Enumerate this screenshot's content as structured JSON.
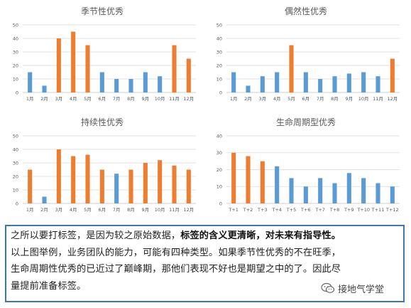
{
  "colors": {
    "orange": "#ED7D31",
    "blue": "#5B9BD5"
  },
  "chart_data": [
    {
      "type": "bar",
      "title": "季节性优秀",
      "categories": [
        "1月",
        "2月",
        "3月",
        "4月",
        "5月",
        "6月",
        "7月",
        "8月",
        "9月",
        "10月",
        "11月",
        "12月"
      ],
      "values": [
        15,
        5,
        40,
        45,
        35,
        15,
        10,
        10,
        15,
        12,
        35,
        25
      ],
      "bar_colors": [
        "blue",
        "blue",
        "orange",
        "orange",
        "orange",
        "blue",
        "blue",
        "blue",
        "blue",
        "blue",
        "orange",
        "orange"
      ],
      "ylim": [
        0,
        50
      ],
      "yticks": [
        0,
        10,
        20,
        30,
        40,
        50
      ],
      "grid": true
    },
    {
      "type": "bar",
      "title": "偶然性优秀",
      "categories": [
        "1月",
        "2月",
        "3月",
        "4月",
        "5月",
        "6月",
        "7月",
        "8月",
        "9月",
        "10月",
        "11月",
        "12月"
      ],
      "values": [
        15,
        5,
        12,
        15,
        35,
        15,
        10,
        12,
        14,
        15,
        12,
        25
      ],
      "bar_colors": [
        "blue",
        "blue",
        "blue",
        "blue",
        "orange",
        "blue",
        "blue",
        "blue",
        "blue",
        "blue",
        "blue",
        "orange"
      ],
      "ylim": [
        0,
        50
      ],
      "yticks": [
        0,
        10,
        20,
        30,
        40,
        50
      ],
      "grid": true
    },
    {
      "type": "bar",
      "title": "持续性优秀",
      "categories": [
        "1月",
        "2月",
        "3月",
        "4月",
        "5月",
        "6月",
        "7月",
        "8月",
        "9月",
        "10月",
        "11月",
        "12月"
      ],
      "values": [
        25,
        5,
        40,
        35,
        36,
        25,
        22,
        25,
        30,
        32,
        28,
        25
      ],
      "bar_colors": [
        "orange",
        "blue",
        "orange",
        "orange",
        "orange",
        "orange",
        "blue",
        "orange",
        "orange",
        "orange",
        "orange",
        "orange"
      ],
      "ylim": [
        0,
        50
      ],
      "yticks": [
        0,
        10,
        20,
        30,
        40,
        50
      ],
      "grid": true
    },
    {
      "type": "bar",
      "title": "生命周期型优秀",
      "categories": [
        "T+1",
        "T+2",
        "T+3",
        "T+4",
        "T+5",
        "T+6",
        "T+7",
        "T+8",
        "T+9",
        "T+10",
        "T+11",
        "T+12"
      ],
      "values": [
        30,
        28,
        25,
        22,
        15,
        10,
        15,
        12,
        18,
        15,
        12,
        10
      ],
      "bar_colors": [
        "orange",
        "orange",
        "orange",
        "blue",
        "blue",
        "blue",
        "blue",
        "blue",
        "blue",
        "blue",
        "blue",
        "blue"
      ],
      "ylim": [
        0,
        40
      ],
      "yticks": [
        0,
        10,
        20,
        30,
        40
      ],
      "grid": true
    }
  ],
  "text": {
    "line1_a": "之所以要打标签，是因为较之原始数据，",
    "line1_b": "标签的含义更清晰，对未来有指导性。",
    "line2": "以上图举例，业务团队的能力，可能有四种类型。如果季节性优秀的不在旺季，",
    "line3": "生命周期性优秀的已近过了巅峰期，那他们表现不好也是期望之中的了。因此尽",
    "line4": "量提前准备标签。"
  },
  "watermark": {
    "label": "接地气学堂",
    "icon": "wechat-icon"
  }
}
